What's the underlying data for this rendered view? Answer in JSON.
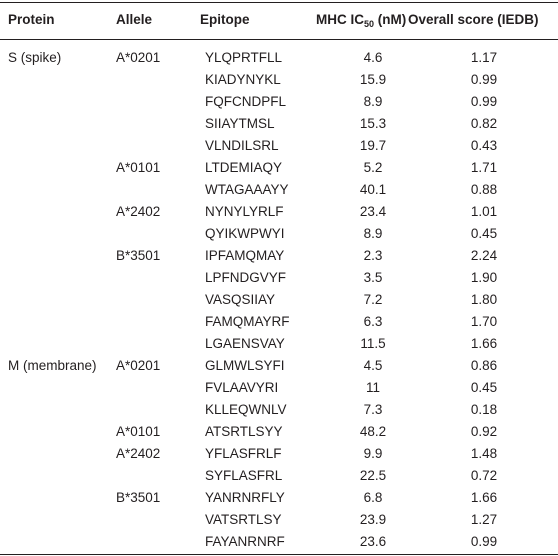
{
  "table": {
    "header": [
      "Protein",
      "Allele",
      "Epitope",
      {
        "text": "MHC IC",
        "sub": "50",
        "suffix": " (nM)"
      },
      "Overall score (IEDB)"
    ],
    "rows": [
      [
        "S (spike)",
        "A*0201",
        "YLQPRTFLL",
        "4.6",
        "1.17"
      ],
      [
        null,
        null,
        "KIADYNYKL",
        "15.9",
        "0.99"
      ],
      [
        null,
        null,
        "FQFCNDPFL",
        "8.9",
        "0.99"
      ],
      [
        null,
        null,
        "SIIAYTMSL",
        "15.3",
        "0.82"
      ],
      [
        null,
        null,
        "VLNDILSRL",
        "19.7",
        "0.43"
      ],
      [
        null,
        "A*0101",
        "LTDEMIAQY",
        "5.2",
        "1.71"
      ],
      [
        null,
        null,
        "WTAGAAAYY",
        "40.1",
        "0.88"
      ],
      [
        null,
        "A*2402",
        "NYNYLYRLF",
        "23.4",
        "1.01"
      ],
      [
        null,
        null,
        "QYIKWPWYI",
        "8.9",
        "0.45"
      ],
      [
        null,
        "B*3501",
        "IPFAMQMAY",
        "2.3",
        "2.24"
      ],
      [
        null,
        null,
        "LPFNDGVYF",
        "3.5",
        "1.90"
      ],
      [
        null,
        null,
        "VASQSIIAY",
        "7.2",
        "1.80"
      ],
      [
        null,
        null,
        "FAMQMAYRF",
        "6.3",
        "1.70"
      ],
      [
        null,
        null,
        "LGAENSVAY",
        "11.5",
        "1.66"
      ],
      [
        "M (membrane)",
        "A*0201",
        "GLMWLSYFI",
        "4.5",
        "0.86"
      ],
      [
        null,
        null,
        "FVLAAVYRI",
        "11",
        "0.45"
      ],
      [
        null,
        null,
        "KLLEQWNLV",
        "7.3",
        "0.18"
      ],
      [
        null,
        "A*0101",
        "ATSRTLSYY",
        "48.2",
        "0.92"
      ],
      [
        null,
        "A*2402",
        "YFLASFRLF",
        "9.9",
        "1.48"
      ],
      [
        null,
        null,
        "SYFLASFRL",
        "22.5",
        "0.72"
      ],
      [
        null,
        "B*3501",
        "YANRNRFLY",
        "6.8",
        "1.66"
      ],
      [
        null,
        null,
        "VATSRTLSY",
        "23.9",
        "1.27"
      ],
      [
        null,
        null,
        "FAYANRNRF",
        "23.6",
        "0.99"
      ]
    ]
  }
}
